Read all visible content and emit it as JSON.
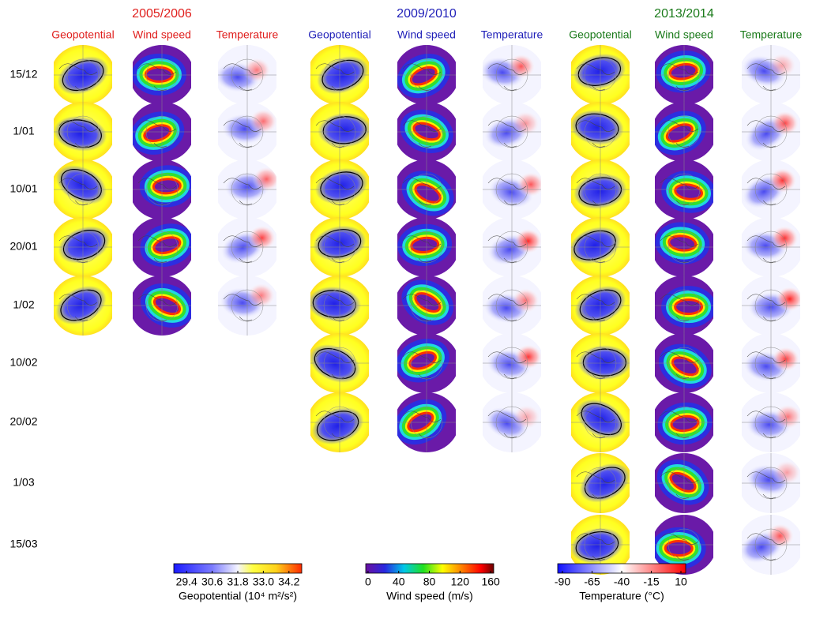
{
  "groups": [
    {
      "title": "2005/2006",
      "color": "#e0201e",
      "columns": [
        "Geopotential",
        "Wind speed",
        "Temperature"
      ]
    },
    {
      "title": "2009/2010",
      "color": "#1f1fb8",
      "columns": [
        "Geopotential",
        "Wind speed",
        "Temperature"
      ]
    },
    {
      "title": "2013/2014",
      "color": "#1a7a1a",
      "columns": [
        "Geopotential",
        "Wind speed",
        "Temperature"
      ]
    }
  ],
  "dates": [
    "15/12",
    "1/01",
    "10/01",
    "20/01",
    "1/02",
    "10/02",
    "20/02",
    "1/03",
    "15/03"
  ],
  "colorbars": [
    {
      "label": "Geopotential (10⁴ m²/s²)",
      "lim": [
        28.8,
        34.8
      ],
      "ticks": [
        29.4,
        30.6,
        31.8,
        {
          "value": 33,
          "label": "33.0"
        },
        34.2
      ]
    },
    {
      "label": "Wind speed (m/s)",
      "lim": [
        -3,
        164
      ],
      "ticks": [
        0,
        40,
        80,
        120,
        160
      ]
    },
    {
      "label": "Temperature (°C)",
      "lim": [
        -94,
        14
      ],
      "ticks": [
        -90,
        -65,
        -40,
        -15,
        10
      ]
    }
  ]
}
